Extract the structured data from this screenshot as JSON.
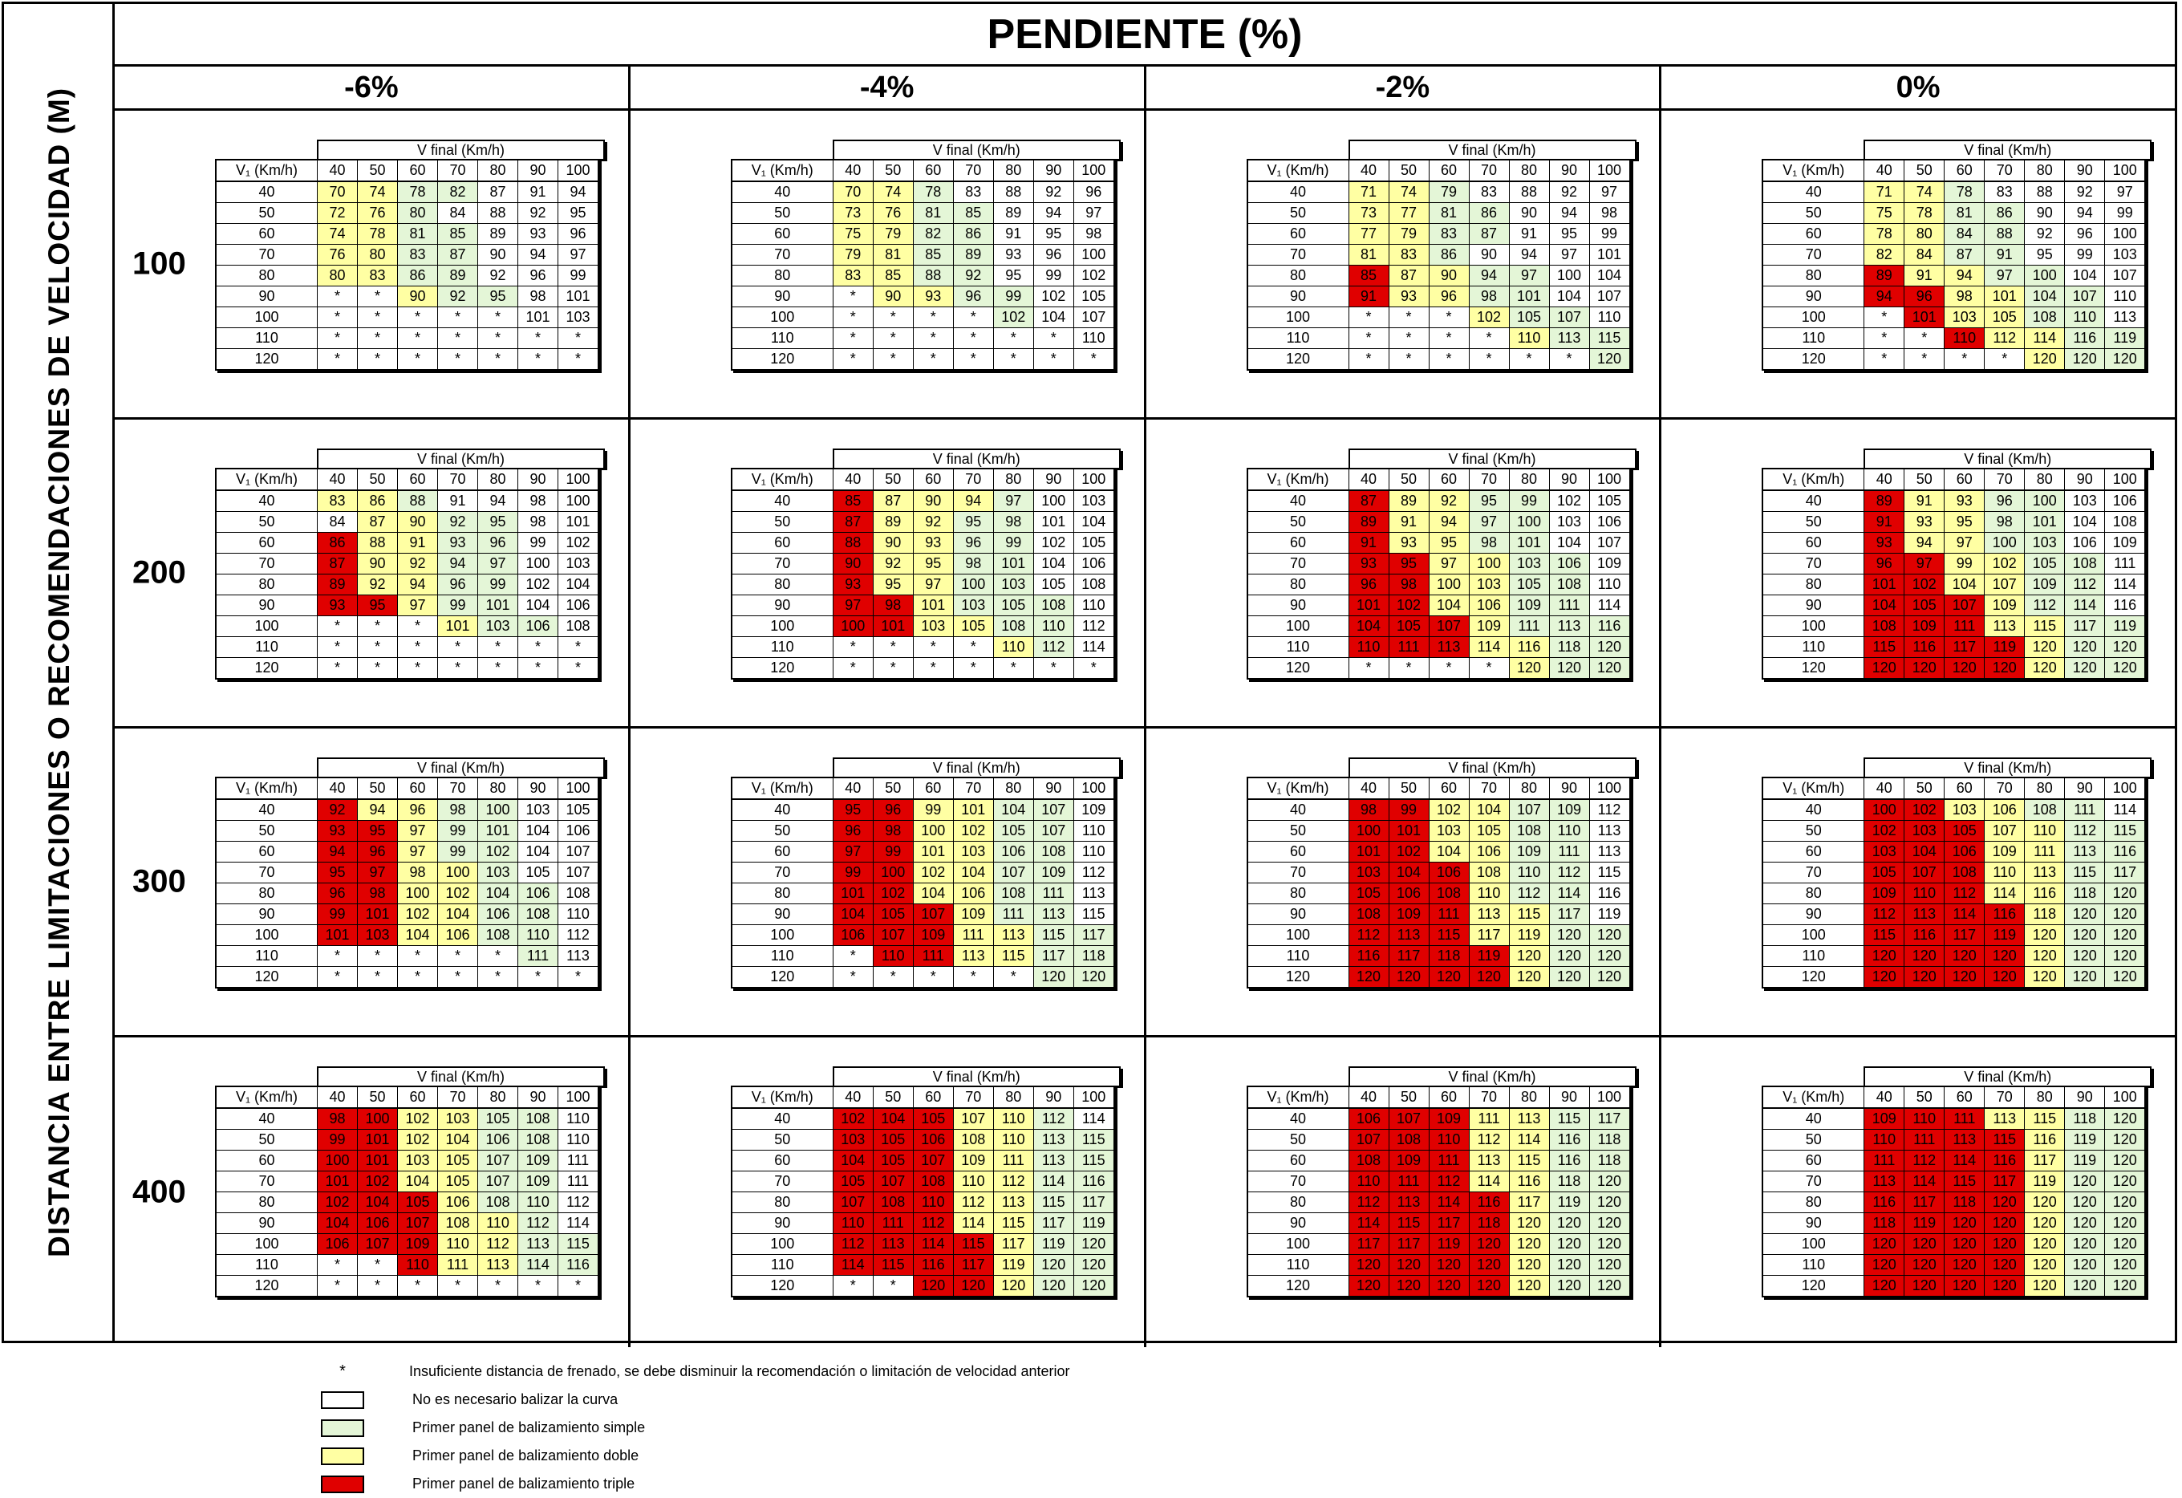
{
  "side_label": "DISTANCIA ENTRE LIMITACIONES O RECOMENDACIONES DE VELOCIDAD (M)",
  "main_title": "PENDIENTE (%)",
  "slopes": [
    "-6%",
    "-4%",
    "-2%",
    "0%"
  ],
  "distances": [
    "100",
    "200",
    "300",
    "400"
  ],
  "table_header": {
    "vfinal": "V final (Km/h)",
    "v1": "V₁ (Km/h)"
  },
  "final_speeds": [
    "40",
    "50",
    "60",
    "70",
    "80",
    "90",
    "100"
  ],
  "initial_speeds": [
    "40",
    "50",
    "60",
    "70",
    "80",
    "90",
    "100",
    "110",
    "120"
  ],
  "tables": [
    [
      [
        "70y 74y 78g 82g 87w 91w 94w",
        "72y 76y 80g 84w 88w 92w 95w",
        "74y 78y 81g 85g 89w 93w 96w",
        "76y 80y 83g 87g 90w 94w 97w",
        "80y 83y 86g 89g 92w 96w 99w",
        "*w *w 90y 92g 95g 98w 101w",
        "*w *w *w *w *w 101w 103w",
        "*w *w *w *w *w *w *w",
        "*w *w *w *w *w *w *w"
      ],
      [
        "70y 74y 78g 83w 88w 92w 96w",
        "73y 76y 81g 85g 89w 94w 97w",
        "75y 79y 82g 86g 91w 95w 98w",
        "79y 81y 85g 89g 93w 96w 100w",
        "83y 85y 88g 92g 95w 99w 102w",
        "*w 90y 93y 96g 99g 102w 105w",
        "*w *w *w *w 102g 104w 107w",
        "*w *w *w *w *w *w 110w",
        "*w *w *w *w *w *w *w"
      ],
      [
        "71y 74y 79g 83w 88w 92w 97w",
        "73y 77y 81g 86g 90w 94w 98w",
        "77y 79y 83g 87g 91w 95w 99w",
        "81y 83y 86g 90w 94w 97w 101w",
        "85r 87y 90y 94g 97g 100w 104w",
        "91r 93y 96y 98g 101g 104w 107w",
        "*w *w *w 102y 105g 107g 110w",
        "*w *w *w *w 110y 113g 115g",
        "*w *w *w *w *w *w 120g"
      ],
      [
        "71y 74y 78g 83w 88w 92w 97w",
        "75y 78y 81g 86g 90w 94w 99w",
        "78y 80y 84g 88g 92w 96w 100w",
        "82y 84y 87g 91g 95w 99w 103w",
        "89r 91y 94y 97g 100g 104w 107w",
        "94r 96r 98y 101y 104g 107g 110w",
        "*w 101r 103y 105y 108g 110g 113w",
        "*w *w 110r 112y 114y 116g 119g",
        "*w *w *w *w 120y 120g 120g"
      ]
    ],
    [
      [
        "83y 86y 88g 91w 94w 98w 100w",
        "84w 87y 90y 92g 95g 98w 101w",
        "86r 88y 91y 93g 96g 99w 102w",
        "87r 90y 92y 94g 97g 100w 103w",
        "89r 92y 94y 96g 99g 102w 104w",
        "93r 95r 97y 99g 101g 104w 106w",
        "*w *w *w 101y 103g 106g 108w",
        "*w *w *w *w *w *w *w",
        "*w *w *w *w *w *w *w"
      ],
      [
        "85r 87y 90y 94y 97g 100w 103w",
        "87r 89y 92y 95g 98g 101w 104w",
        "88r 90y 93y 96g 99g 102w 105w",
        "90r 92y 95y 98g 101g 104w 106w",
        "93r 95y 97y 100g 103g 105w 108w",
        "97r 98r 101y 103g 105g 108g 110w",
        "100r 101r 103y 105y 108g 110g 112w",
        "*w *w *w *w 110y 112g 114w",
        "*w *w *w *w *w *w *w"
      ],
      [
        "87r 89y 92y 95g 99g 102w 105w",
        "89r 91y 94y 97g 100g 103w 106w",
        "91r 93y 95y 98g 101g 104w 107w",
        "93r 95r 97y 100y 103g 106g 109w",
        "96r 98r 100y 103y 105g 108g 110w",
        "101r 102r 104y 106y 109g 111g 114w",
        "104r 105r 107r 109y 111g 113g 116g",
        "110r 111r 113r 114y 116y 118g 120g",
        "*w *w *w *w 120y 120g 120g"
      ],
      [
        "89r 91y 93y 96g 100g 103w 106w",
        "91r 93y 95y 98g 101g 104w 108w",
        "93r 94y 97y 100g 103g 106w 109w",
        "96r 97r 99y 102y 105g 108g 111w",
        "101r 102r 104y 107y 109g 112g 114w",
        "104r 105r 107r 109y 112g 114g 116w",
        "108r 109r 111r 113y 115y 117g 119g",
        "115r 116r 117r 119r 120y 120g 120g",
        "120r 120r 120r 120r 120y 120g 120g"
      ]
    ],
    [
      [
        "92r 94y 96y 98g 100g 103w 105w",
        "93r 95r 97y 99g 101g 104w 106w",
        "94r 96r 97y 99g 102g 104w 107w",
        "95r 97r 98y 100y 103g 105w 107w",
        "96r 98r 100y 102y 104g 106g 108w",
        "99r 101r 102y 104y 106g 108g 110w",
        "101r 103r 104y 106y 108g 110g 112w",
        "*w *w *w *w *w 111g 113w",
        "*w *w *w *w *w *w *w"
      ],
      [
        "95r 96r 99y 101y 104g 107g 109w",
        "96r 98r 100y 102y 105g 107g 110w",
        "97r 99r 101y 103y 106g 108g 110w",
        "99r 100r 102y 104y 107g 109g 112w",
        "101r 102r 104y 106y 108g 111g 113w",
        "104r 105r 107r 109y 111g 113g 115w",
        "106r 107r 109r 111y 113y 115g 117g",
        "*w 110r 111r 113y 115y 117g 118g",
        "*w *w *w *w *w 120g 120g"
      ],
      [
        "98r 99r 102y 104y 107g 109g 112w",
        "100r 101r 103y 105y 108g 110g 113w",
        "101r 102r 104y 106y 109g 111g 113w",
        "103r 104r 106r 108y 110g 112g 115w",
        "105r 106r 108r 110y 112g 114g 116w",
        "108r 109r 111r 113y 115y 117g 119w",
        "112r 113r 115r 117y 119y 120g 120g",
        "116r 117r 118r 119r 120y 120g 120g",
        "120r 120r 120r 120r 120y 120g 120g"
      ],
      [
        "100r 102r 103y 106y 108g 111g 114w",
        "102r 103r 105r 107y 110y 112g 115g",
        "103r 104r 106r 109y 111y 113g 116g",
        "105r 107r 108r 110y 113y 115g 117g",
        "109r 110r 112r 114y 116y 118g 120g",
        "112r 113r 114r 116r 118y 120g 120g",
        "115r 116r 117r 119r 120y 120g 120g",
        "120r 120r 120r 120r 120y 120g 120g",
        "120r 120r 120r 120r 120y 120g 120g"
      ]
    ],
    [
      [
        "98r 100r 102y 103y 105g 108g 110w",
        "99r 101r 102y 104y 106g 108g 110w",
        "100r 101r 103y 105y 107g 109g 111w",
        "101r 102r 104y 105y 107g 109g 111w",
        "102r 104r 105r 106y 108g 110g 112w",
        "104r 106r 107r 108y 110y 112g 114w",
        "106r 107r 109r 110y 112y 113g 115g",
        "*w *w 110r 111y 113y 114g 116g",
        "*w *w *w *w *w *w *w"
      ],
      [
        "102r 104r 105r 107y 110y 112g 114w",
        "103r 105r 106r 108y 110y 113g 115g",
        "104r 105r 107r 109y 111y 113g 115g",
        "105r 107r 108r 110y 112y 114g 116g",
        "107r 108r 110r 112y 113y 115g 117g",
        "110r 111r 112r 114y 115y 117g 119g",
        "112r 113r 114r 115r 117y 119g 120g",
        "114r 115r 116r 117r 119y 120g 120g",
        "*w *w 120r 120r 120y 120g 120g"
      ],
      [
        "106r 107r 109r 111y 113y 115g 117g",
        "107r 108r 110r 112y 114y 116g 118g",
        "108r 109r 111r 113y 115y 116g 118g",
        "110r 111r 112r 114y 116y 118g 120g",
        "112r 113r 114r 116r 117y 119g 120g",
        "114r 115r 117r 118r 120y 120g 120g",
        "117r 117r 119r 120r 120y 120g 120g",
        "120r 120r 120r 120r 120y 120g 120g",
        "120r 120r 120r 120r 120y 120g 120g"
      ],
      [
        "109r 110r 111r 113y 115y 118g 120g",
        "110r 111r 113r 115r 116y 119g 120g",
        "111r 112r 114r 116r 117y 119g 120g",
        "113r 114r 115r 117r 119y 120g 120g",
        "116r 117r 118r 120r 120y 120g 120g",
        "118r 119r 120r 120r 120y 120g 120g",
        "120r 120r 120r 120r 120y 120g 120g",
        "120r 120r 120r 120r 120y 120g 120g",
        "120r 120r 120r 120r 120y 120g 120g"
      ]
    ]
  ],
  "legend": [
    {
      "symbol": "*",
      "text": "Insuficiente distancia de frenado, se debe disminuir la recomendación o limitación de velocidad anterior"
    },
    {
      "swatch": "w",
      "text": "No es necesario balizar la curva"
    },
    {
      "swatch": "g",
      "text": "Primer panel de balizamiento simple"
    },
    {
      "swatch": "y",
      "text": "Primer panel de balizamiento doble"
    },
    {
      "swatch": "r",
      "text": "Primer panel de balizamiento triple"
    }
  ],
  "colors": {
    "w": "#ffffff",
    "g": "#e4f6d7",
    "y": "#ffffa3",
    "r": "#e00000"
  }
}
